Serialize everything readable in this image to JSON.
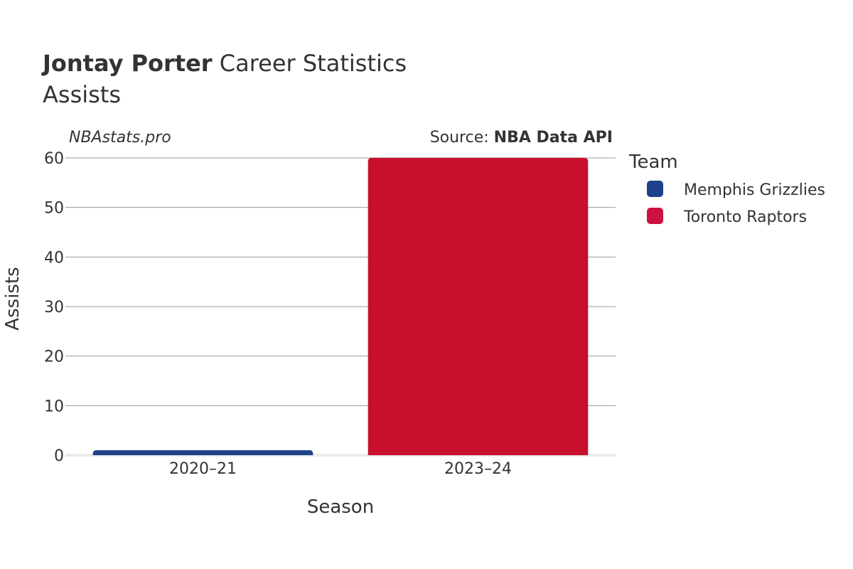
{
  "chart_data": {
    "type": "bar",
    "title": {
      "player": "Jontay Porter",
      "rest": " Career Statistics",
      "subtitle": "Assists"
    },
    "annotation_left": "NBAstats.pro",
    "source": {
      "prefix": "Source: ",
      "name": "NBA Data API"
    },
    "xlabel": "Season",
    "ylabel": "Assists",
    "categories": [
      "2020–21",
      "2023–24"
    ],
    "ylim": [
      0,
      60
    ],
    "yticks": [
      0,
      10,
      20,
      30,
      40,
      50,
      60
    ],
    "grid": true,
    "legend": {
      "title": "Team",
      "placement": "right",
      "entries": [
        {
          "name": "Memphis Grizzlies",
          "color": "#1d428a"
        },
        {
          "name": "Toronto Raptors",
          "color": "#ce1141"
        }
      ]
    },
    "bars": [
      {
        "category": "2020–21",
        "team": "Memphis Grizzlies",
        "value": 1,
        "color": "#1d428a"
      },
      {
        "category": "2023–24",
        "team": "Toronto Raptors",
        "value": 60,
        "color": "#c8102e"
      }
    ]
  }
}
